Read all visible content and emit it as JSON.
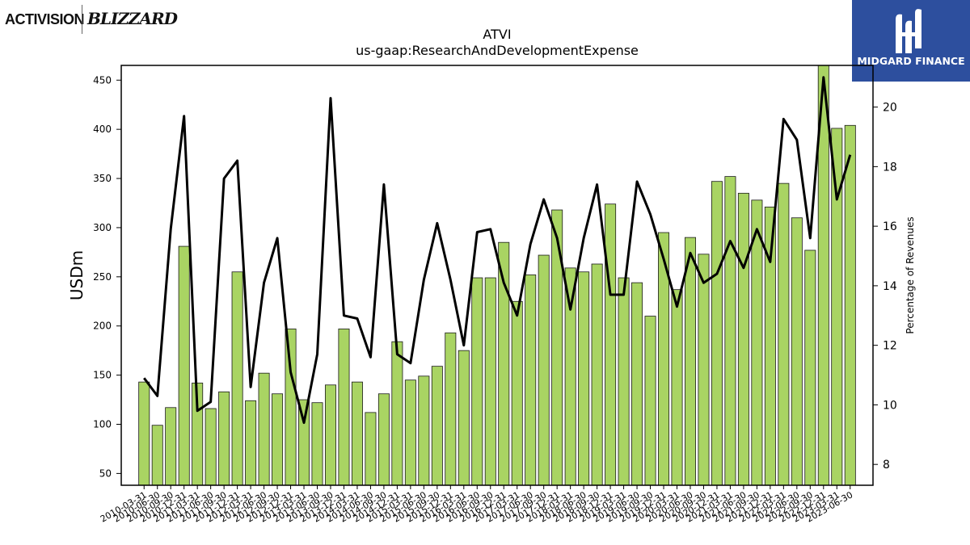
{
  "logos": {
    "left_primary": "ACTIVISION",
    "left_secondary": "BLIZZARD",
    "right_text": "MIDGARD FINANCE"
  },
  "colors": {
    "bar_fill": "#a9d463",
    "bar_edge": "#1a1a1a",
    "line": "#000000",
    "logo_bg": "#2d4f9e"
  },
  "chart_data": {
    "type": "bar",
    "title": "ATVI",
    "subtitle": "us-gaap:ResearchAndDevelopmentExpense",
    "ylabel": "USDm",
    "y2label": "Percentage of Revenues",
    "ylim": [
      38,
      465
    ],
    "y2lim": [
      7.3,
      21.4
    ],
    "yticks": [
      50,
      100,
      150,
      200,
      250,
      300,
      350,
      400,
      450
    ],
    "y2ticks": [
      8,
      10,
      12,
      14,
      16,
      18,
      20
    ],
    "grid": false,
    "categories": [
      "2010-03-31",
      "2010-06-30",
      "2010-09-30",
      "2010-12-31",
      "2011-03-31",
      "2011-06-30",
      "2011-09-30",
      "2011-12-31",
      "2012-03-31",
      "2012-06-30",
      "2012-09-30",
      "2012-12-31",
      "2013-03-31",
      "2013-06-30",
      "2013-09-30",
      "2013-12-31",
      "2014-03-31",
      "2014-06-30",
      "2014-09-30",
      "2014-12-31",
      "2015-03-31",
      "2015-06-30",
      "2015-09-30",
      "2015-12-31",
      "2016-03-31",
      "2016-06-30",
      "2016-09-30",
      "2016-12-31",
      "2017-03-31",
      "2017-06-30",
      "2017-09-30",
      "2017-12-31",
      "2018-03-31",
      "2018-06-30",
      "2018-09-30",
      "2018-12-31",
      "2019-03-31",
      "2019-06-30",
      "2019-09-30",
      "2019-12-31",
      "2020-03-31",
      "2020-06-30",
      "2020-09-30",
      "2020-12-31",
      "2021-03-31",
      "2021-06-30",
      "2021-09-30",
      "2021-12-31",
      "2022-03-31",
      "2022-06-30",
      "2022-09-30",
      "2022-12-31",
      "2023-03-31",
      "2023-06-30"
    ],
    "series": [
      {
        "type": "bar",
        "axis": "left",
        "values": [
          143,
          99,
          117,
          281,
          142,
          116,
          133,
          255,
          124,
          152,
          131,
          197,
          125,
          122,
          140,
          197,
          143,
          112,
          131,
          184,
          145,
          149,
          159,
          193,
          175,
          249,
          249,
          285,
          225,
          252,
          272,
          318,
          259,
          255,
          263,
          324,
          249,
          244,
          210,
          295,
          237,
          290,
          273,
          347,
          352,
          335,
          328,
          321,
          345,
          310,
          277,
          466,
          401,
          404
        ]
      },
      {
        "type": "line",
        "axis": "right",
        "values": [
          10.9,
          10.3,
          15.9,
          19.7,
          9.8,
          10.1,
          17.6,
          18.2,
          10.6,
          14.1,
          15.6,
          11.1,
          9.4,
          11.7,
          20.3,
          13.0,
          12.9,
          11.6,
          17.4,
          11.7,
          11.4,
          14.2,
          16.1,
          14.2,
          12.0,
          15.8,
          15.9,
          14.1,
          13.0,
          15.4,
          16.9,
          15.6,
          13.2,
          15.6,
          17.4,
          13.7,
          13.7,
          17.5,
          16.4,
          14.9,
          13.3,
          15.1,
          14.1,
          14.4,
          15.5,
          14.6,
          15.9,
          14.8,
          19.6,
          18.9,
          15.6,
          21.0,
          16.9,
          18.4
        ]
      }
    ]
  }
}
